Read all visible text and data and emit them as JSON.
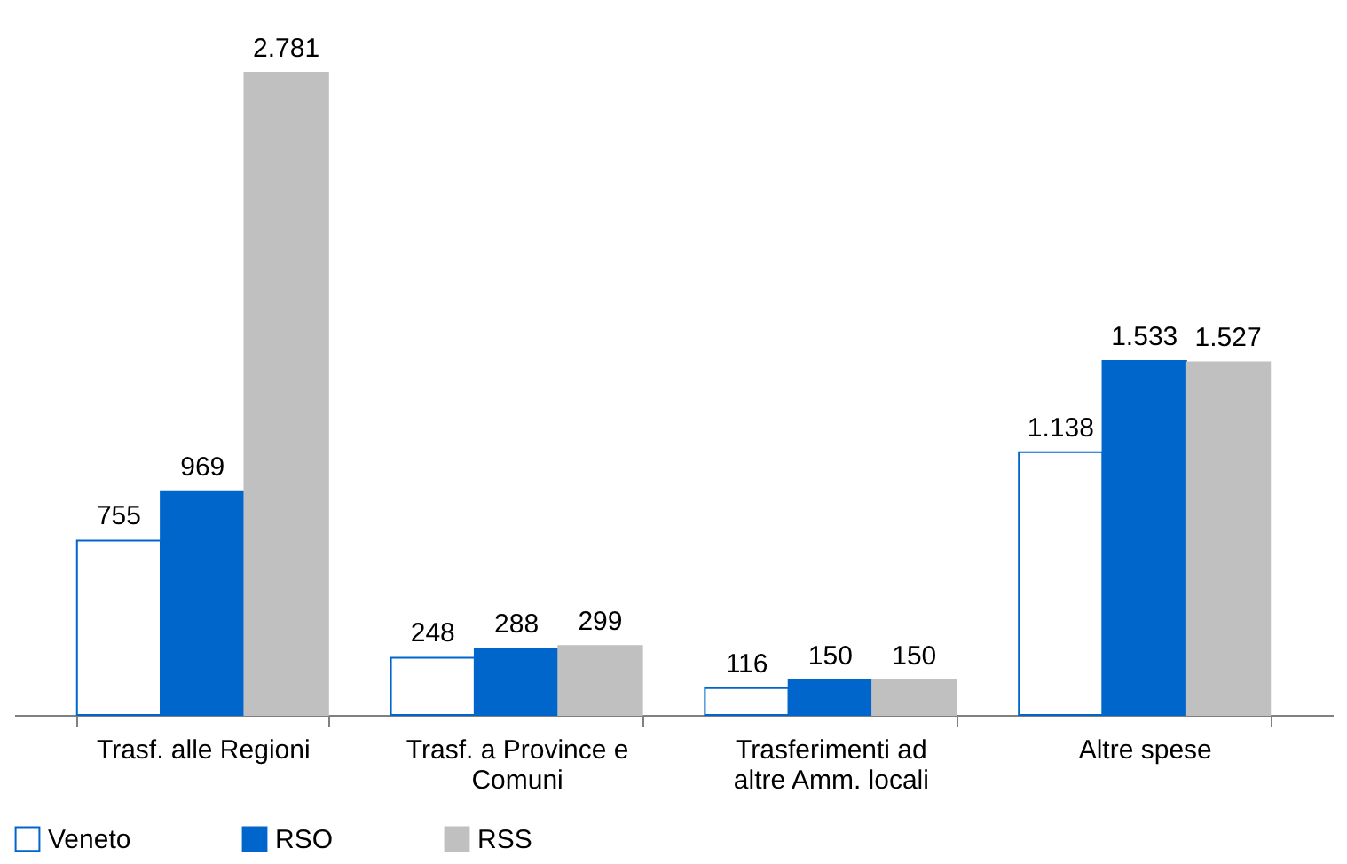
{
  "chart_data": {
    "type": "bar",
    "categories": [
      "Trasf. alle Regioni",
      "Trasf. a Province e Comuni",
      "Trasferimenti ad altre Amm. locali",
      "Altre spese"
    ],
    "series": [
      {
        "name": "Veneto",
        "color": "#ffffff",
        "values": [
          755,
          248,
          116,
          1138
        ],
        "value_labels": [
          "755",
          "248",
          "116",
          "1.138"
        ]
      },
      {
        "name": "RSO",
        "color": "#0066cc",
        "values": [
          969,
          288,
          150,
          1533
        ],
        "value_labels": [
          "969",
          "288",
          "150",
          "1.533"
        ]
      },
      {
        "name": "RSS",
        "color": "#c0c0c0",
        "values": [
          2781,
          299,
          150,
          1527
        ],
        "value_labels": [
          "2.781",
          "299",
          "150",
          "1.527"
        ]
      }
    ],
    "legend": "bottom",
    "grid": false
  }
}
